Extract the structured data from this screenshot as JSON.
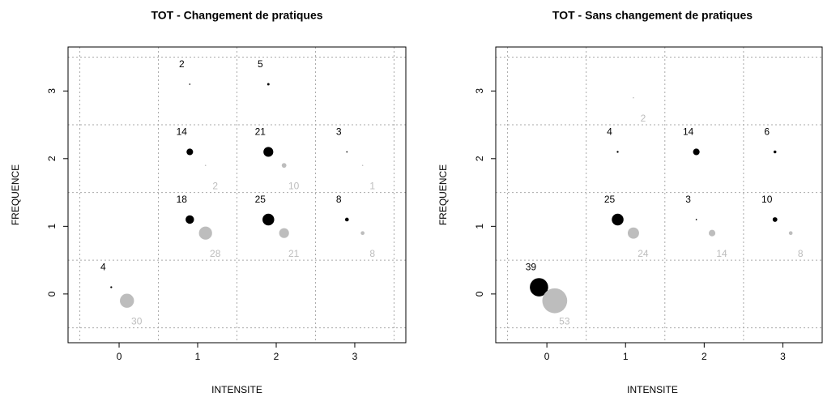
{
  "chart_data": [
    {
      "type": "scatter",
      "title": "TOT - Changement de pratiques",
      "x_label": "INTENSITE",
      "y_label": "FREQUENCE",
      "xlim": [
        -0.65,
        3.65
      ],
      "ylim": [
        -0.72,
        3.65
      ],
      "xticks": [
        0,
        1,
        2,
        3
      ],
      "yticks": [
        0,
        1,
        2,
        3
      ],
      "xgrid": [
        -0.5,
        0.5,
        1.5,
        2.5,
        3.5
      ],
      "ygrid": [
        -0.5,
        0.5,
        1.5,
        2.5,
        3.5
      ],
      "grid": true,
      "series": [
        {
          "color": "#000000",
          "x": [
            -0.1,
            0.9,
            0.9,
            0.9,
            1.9,
            1.9,
            1.9,
            2.9,
            2.9
          ],
          "values": [
            0.1,
            1.1,
            2.1,
            3.1,
            1.1,
            2.1,
            3.1,
            1.1,
            2.1
          ],
          "sizes": [
            4,
            18,
            14,
            2,
            25,
            21,
            5,
            8,
            3
          ]
        },
        {
          "color": "#bdbdbd",
          "x": [
            0.1,
            1.1,
            1.1,
            2.1,
            2.1,
            3.1,
            3.1
          ],
          "values": [
            -0.1,
            0.9,
            1.9,
            0.9,
            1.9,
            0.9,
            1.9
          ],
          "sizes": [
            30,
            28,
            2,
            21,
            10,
            8,
            1
          ]
        }
      ]
    },
    {
      "type": "scatter",
      "title": "TOT - Sans changement de pratiques",
      "x_label": "INTENSITE",
      "y_label": "FREQUENCE",
      "xlim": [
        -0.65,
        3.5
      ],
      "ylim": [
        -0.72,
        3.65
      ],
      "xticks": [
        0,
        1,
        2,
        3
      ],
      "yticks": [
        0,
        1,
        2,
        3
      ],
      "xgrid": [
        -0.5,
        0.5,
        1.5,
        2.5,
        3.5
      ],
      "ygrid": [
        -0.5,
        0.5,
        1.5,
        2.5,
        3.5
      ],
      "grid": true,
      "series": [
        {
          "color": "#000000",
          "x": [
            -0.1,
            0.9,
            0.9,
            1.9,
            1.9,
            2.9,
            2.9
          ],
          "values": [
            0.1,
            1.1,
            2.1,
            1.1,
            2.1,
            1.1,
            2.1
          ],
          "sizes": [
            39,
            25,
            4,
            3,
            14,
            10,
            6
          ]
        },
        {
          "color": "#bdbdbd",
          "x": [
            0.1,
            1.1,
            1.1,
            2.1,
            3.1
          ],
          "values": [
            -0.1,
            0.9,
            2.9,
            0.9,
            0.9
          ],
          "sizes": [
            53,
            24,
            2,
            14,
            8
          ]
        }
      ]
    }
  ]
}
